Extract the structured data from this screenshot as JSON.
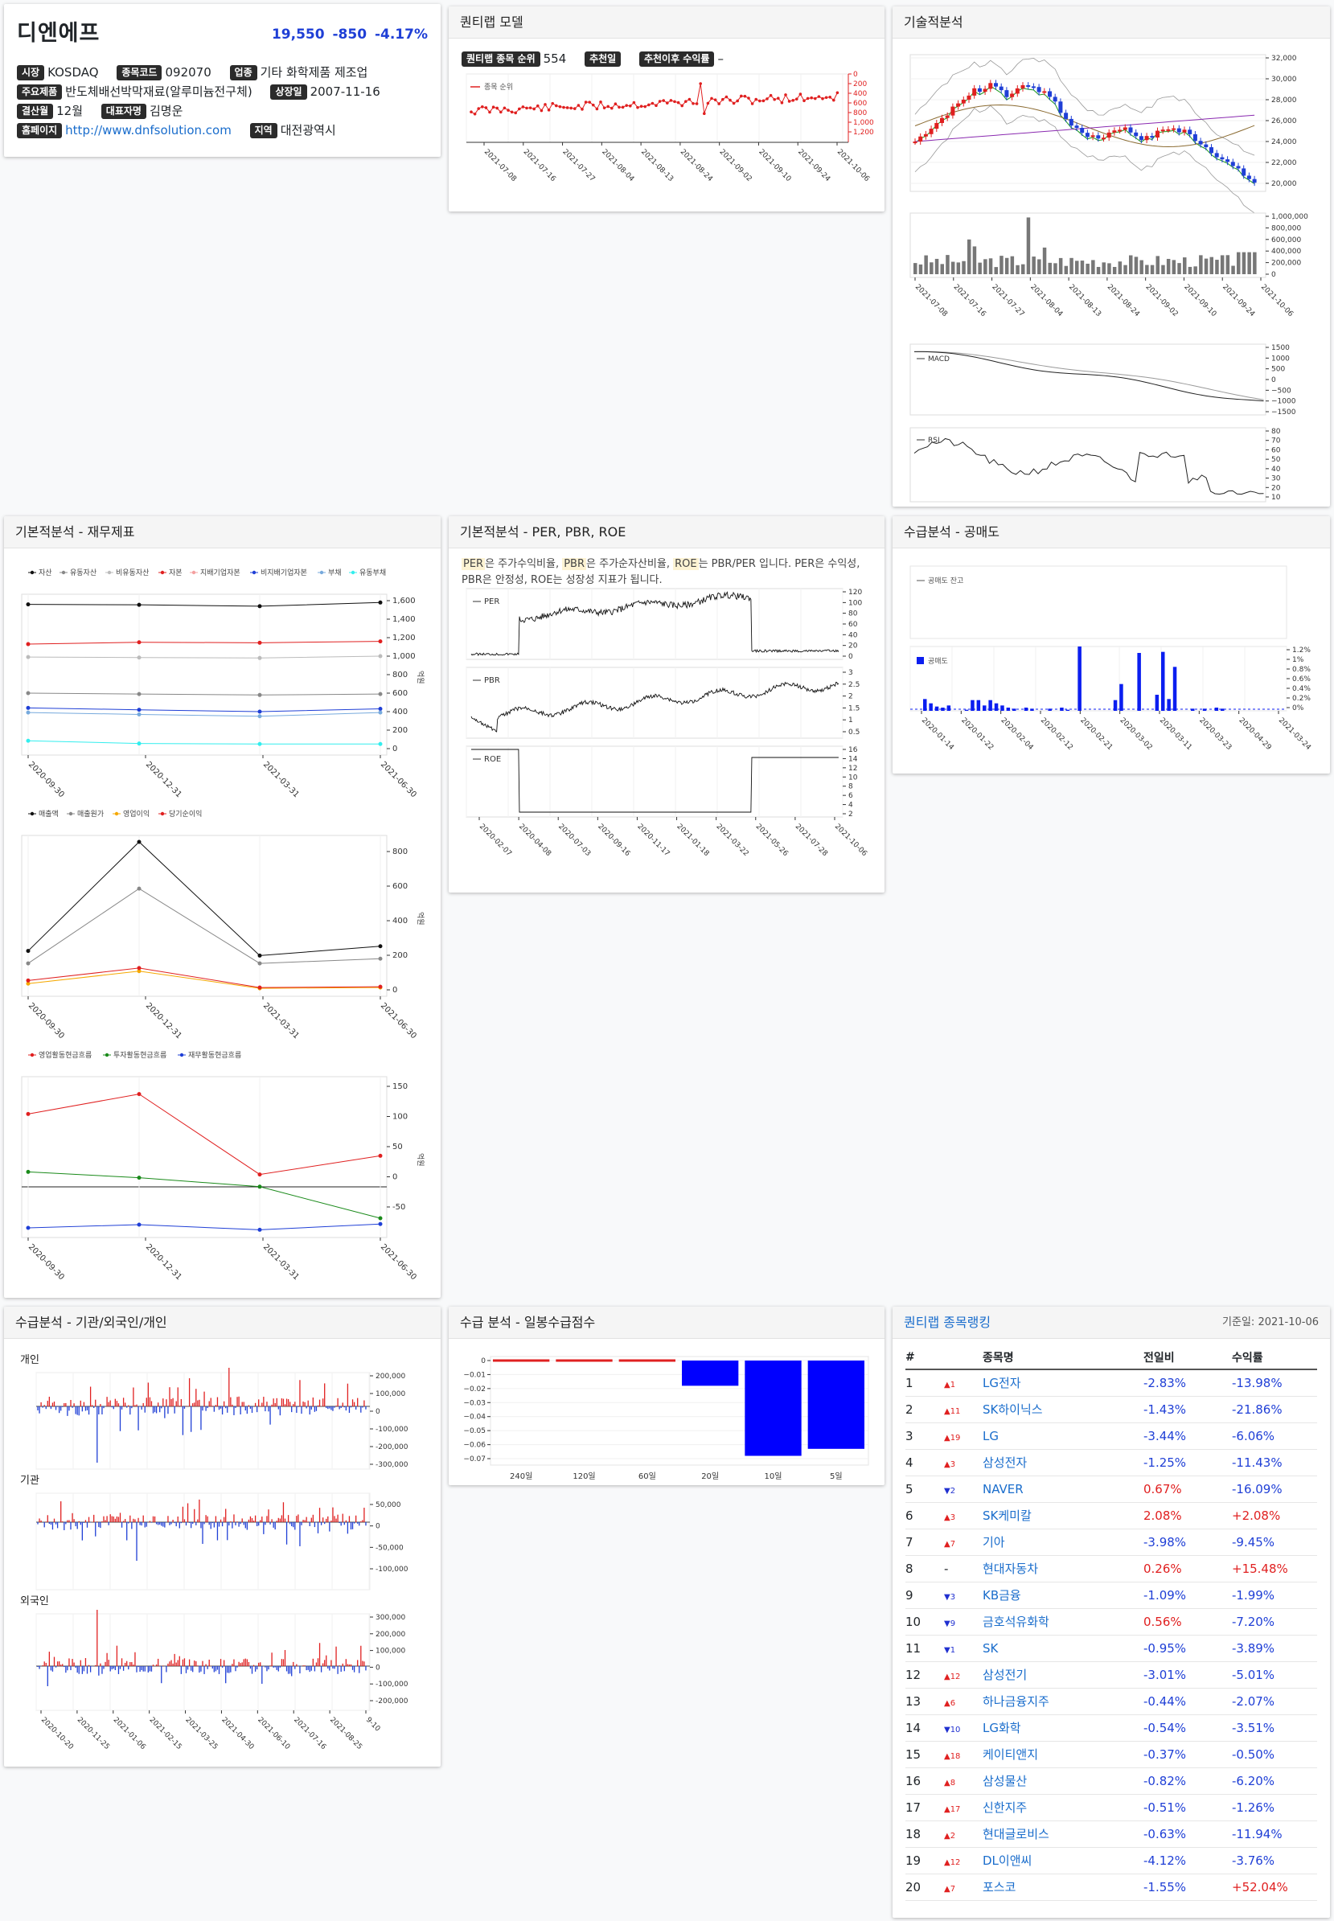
{
  "company": {
    "name": "디엔에프",
    "price": "19,550",
    "change": "-850",
    "change_pct": "-4.17%",
    "fields": [
      {
        "label": "시장",
        "value": "KOSDAQ"
      },
      {
        "label": "종목코드",
        "value": "092070"
      },
      {
        "label": "업종",
        "value": "기타 화학제품 제조업"
      },
      {
        "label": "주요제품",
        "value": "반도체배선박막재료(알루미늄전구체)"
      },
      {
        "label": "상장일",
        "value": "2007-11-16"
      },
      {
        "label": "결산월",
        "value": "12월"
      },
      {
        "label": "대표자명",
        "value": "김명운"
      },
      {
        "label": "홈페이지",
        "value": "http://www.dnfsolution.com"
      },
      {
        "label": "지역",
        "value": "대전광역시"
      }
    ]
  },
  "quant_model": {
    "title": "퀀티랩 모델",
    "rank_label": "퀀티랩 종목 순위",
    "rank_value": "554",
    "rec_date_label": "추천일",
    "return_label": "추천이후 수익률",
    "return_value": "–",
    "legend": "종목 순위",
    "y_ticks": [
      "0",
      "200",
      "400",
      "600",
      "800",
      "1,000",
      "1,200"
    ],
    "x_ticks": [
      "2021-07-08",
      "2021-07-16",
      "2021-07-27",
      "2021-08-04",
      "2021-08-13",
      "2021-08-24",
      "2021-09-02",
      "2021-09-10",
      "2021-09-24",
      "2021-10-06"
    ]
  },
  "technical": {
    "title": "기술적분석",
    "price_ticks": [
      "32,000",
      "30,000",
      "28,000",
      "26,000",
      "24,000",
      "22,000",
      "20,000"
    ],
    "volume_ticks": [
      "1,000,000",
      "800,000",
      "600,000",
      "400,000",
      "200,000",
      "0"
    ],
    "x_ticks": [
      "2021-07-08",
      "2021-07-16",
      "2021-07-27",
      "2021-08-04",
      "2021-08-13",
      "2021-08-24",
      "2021-09-02",
      "2021-09-10",
      "2021-09-24",
      "2021-10-06"
    ],
    "macd_label": "MACD",
    "macd_ticks": [
      "1500",
      "1000",
      "500",
      "0",
      "−500",
      "−1000",
      "−1500"
    ],
    "rsi_label": "RSI",
    "rsi_ticks": [
      "80",
      "70",
      "60",
      "50",
      "40",
      "30",
      "20",
      "10"
    ]
  },
  "fundamental": {
    "title": "기본적분석 - 재무제표",
    "x_ticks": [
      "2020-09-30",
      "2020-12-31",
      "2021-03-31",
      "2021-06-30"
    ],
    "unit": "억원",
    "chart1_legend": [
      "자산",
      "유동자산",
      "비유동자산",
      "자본",
      "지배기업자본",
      "비지배기업자본",
      "부채",
      "유동부채"
    ],
    "chart1_ticks": [
      "1,600",
      "1,400",
      "1,200",
      "1,000",
      "800",
      "600",
      "400",
      "200",
      "0"
    ],
    "chart2_legend": [
      "매출액",
      "매출원가",
      "영업이익",
      "당기순이익"
    ],
    "chart2_ticks": [
      "800",
      "600",
      "400",
      "200",
      "0"
    ],
    "chart3_legend": [
      "영업활동현금흐름",
      "투자활동현금흐름",
      "재무활동현금흐름"
    ],
    "chart3_ticks": [
      "150",
      "100",
      "50",
      "0",
      "-50"
    ]
  },
  "valuation": {
    "title": "기본적분석 - PER, PBR, ROE",
    "desc_parts": [
      "PER",
      "은 주가수익비율, ",
      "PBR",
      "은 주가순자산비율, ",
      "ROE",
      "는 PBR/PER 입니다. PER은 수익성, PBR은 안정성, ROE는 성장성 지표가 됩니다."
    ],
    "per_label": "PER",
    "per_ticks": [
      "120",
      "100",
      "80",
      "60",
      "40",
      "20",
      "0"
    ],
    "pbr_label": "PBR",
    "pbr_ticks": [
      "3",
      "2.5",
      "2",
      "1.5",
      "1",
      "0.5"
    ],
    "roe_label": "ROE",
    "roe_ticks": [
      "16",
      "14",
      "12",
      "10",
      "8",
      "6",
      "4",
      "2"
    ],
    "x_ticks": [
      "2020-02-07",
      "2020-04-08",
      "2020-07-03",
      "2020-09-16",
      "2020-11-17",
      "2021-01-18",
      "2021-03-22",
      "2021-05-26",
      "2021-07-28",
      "2021-10-06"
    ]
  },
  "short_sale": {
    "title": "수급분석 - 공매도",
    "legend_balance": "공매도 잔고",
    "legend_bar": "공매도",
    "ticks": [
      "1.2%",
      "1%",
      "0.8%",
      "0.6%",
      "0.4%",
      "0.2%",
      "0%"
    ],
    "x_ticks": [
      "2020-01-14",
      "2020-01-22",
      "2020-02-04",
      "2020-02-12",
      "2020-02-21",
      "2020-03-02",
      "2020-03-11",
      "2020-03-23",
      "2020-04-29",
      "2021-03-24"
    ]
  },
  "investor": {
    "title": "수급분석 - 기관/외국인/개인",
    "individual_label": "개인",
    "individual_ticks": [
      "200,000",
      "100,000",
      "0",
      "-100,000",
      "-200,000",
      "-300,000"
    ],
    "institution_label": "기관",
    "institution_ticks": [
      "50,000",
      "0",
      "-50,000",
      "-100,000"
    ],
    "foreign_label": "외국인",
    "foreign_ticks": [
      "300,000",
      "200,000",
      "100,000",
      "0",
      "-100,000",
      "-200,000"
    ],
    "x_ticks": [
      "2020-10-20",
      "2020-11-25",
      "2021-01-06",
      "2021-02-15",
      "2021-03-25",
      "2021-04-30",
      "2021-06-10",
      "2021-07-16",
      "2021-08-25",
      "9-10"
    ]
  },
  "supply_score": {
    "title": "수급 분석 - 일봉수급점수",
    "ticks": [
      "0",
      "−0.01",
      "−0.02",
      "−0.03",
      "−0.04",
      "−0.05",
      "−0.06",
      "−0.07"
    ],
    "chart_data": {
      "type": "bar",
      "categories": [
        "240일",
        "120일",
        "60일",
        "20일",
        "10일",
        "5일"
      ],
      "values": [
        0,
        0,
        0,
        -0.018,
        -0.068,
        -0.063
      ],
      "ylim": [
        -0.07,
        0
      ]
    }
  },
  "ranking": {
    "title": "퀀티랩 종목랭킹",
    "date": "기준일: 2021-10-06",
    "headers": [
      "#",
      "종목명",
      "전일비",
      "수익률"
    ],
    "rows": [
      {
        "no": "1",
        "arrow": "▲",
        "delta": "1",
        "name": "LG전자",
        "chg": "-2.83%",
        "ret": "-13.98%"
      },
      {
        "no": "2",
        "arrow": "▲",
        "delta": "11",
        "name": "SK하이닉스",
        "chg": "-1.43%",
        "ret": "-21.86%"
      },
      {
        "no": "3",
        "arrow": "▲",
        "delta": "19",
        "name": "LG",
        "chg": "-3.44%",
        "ret": "-6.06%"
      },
      {
        "no": "4",
        "arrow": "▲",
        "delta": "3",
        "name": "삼성전자",
        "chg": "-1.25%",
        "ret": "-11.43%"
      },
      {
        "no": "5",
        "arrow": "▼",
        "delta": "2",
        "name": "NAVER",
        "chg": "0.67%",
        "ret": "-16.09%"
      },
      {
        "no": "6",
        "arrow": "▲",
        "delta": "3",
        "name": "SK케미칼",
        "chg": "2.08%",
        "ret": "+2.08%"
      },
      {
        "no": "7",
        "arrow": "▲",
        "delta": "7",
        "name": "기아",
        "chg": "-3.98%",
        "ret": "-9.45%"
      },
      {
        "no": "8",
        "arrow": "-",
        "delta": "",
        "name": "현대자동차",
        "chg": "0.26%",
        "ret": "+15.48%"
      },
      {
        "no": "9",
        "arrow": "▼",
        "delta": "3",
        "name": "KB금융",
        "chg": "-1.09%",
        "ret": "-1.99%"
      },
      {
        "no": "10",
        "arrow": "▼",
        "delta": "9",
        "name": "금호석유화학",
        "chg": "0.56%",
        "ret": "-7.20%"
      },
      {
        "no": "11",
        "arrow": "▼",
        "delta": "1",
        "name": "SK",
        "chg": "-0.95%",
        "ret": "-3.89%"
      },
      {
        "no": "12",
        "arrow": "▲",
        "delta": "12",
        "name": "삼성전기",
        "chg": "-3.01%",
        "ret": "-5.01%"
      },
      {
        "no": "13",
        "arrow": "▲",
        "delta": "6",
        "name": "하나금융지주",
        "chg": "-0.44%",
        "ret": "-2.07%"
      },
      {
        "no": "14",
        "arrow": "▼",
        "delta": "10",
        "name": "LG화학",
        "chg": "-0.54%",
        "ret": "-3.51%"
      },
      {
        "no": "15",
        "arrow": "▲",
        "delta": "18",
        "name": "케이티앤지",
        "chg": "-0.37%",
        "ret": "-0.50%"
      },
      {
        "no": "16",
        "arrow": "▲",
        "delta": "8",
        "name": "삼성물산",
        "chg": "-0.82%",
        "ret": "-6.20%"
      },
      {
        "no": "17",
        "arrow": "▲",
        "delta": "17",
        "name": "신한지주",
        "chg": "-0.51%",
        "ret": "-1.26%"
      },
      {
        "no": "18",
        "arrow": "▲",
        "delta": "2",
        "name": "현대글로비스",
        "chg": "-0.63%",
        "ret": "-11.94%"
      },
      {
        "no": "19",
        "arrow": "▲",
        "delta": "12",
        "name": "DL이앤씨",
        "chg": "-4.12%",
        "ret": "-3.76%"
      },
      {
        "no": "20",
        "arrow": "▲",
        "delta": "7",
        "name": "포스코",
        "chg": "-1.55%",
        "ret": "+52.04%"
      }
    ]
  },
  "colors": {
    "up": "#e02020",
    "down": "#1f3fd6",
    "link": "#1a6dcc"
  }
}
